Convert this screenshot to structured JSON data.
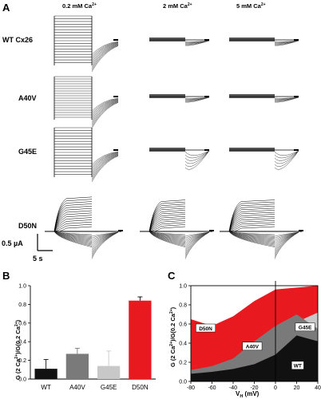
{
  "panel_a": {
    "letter": "A",
    "col_headers": [
      "0.2 mM Ca",
      "2 mM Ca",
      "5 mM Ca"
    ],
    "ca_superscript": "2+",
    "row_labels": [
      "WT Cx26",
      "A40V",
      "G45E",
      "D50N"
    ],
    "scale_current": "0.5 µA",
    "scale_time": "5 s"
  },
  "panel_b": {
    "letter": "B",
    "ylabel": "G (2 Ca",
    "ylabel_sup1": "2+",
    "ylabel_mid": ")/G(0.2 Ca",
    "ylabel_sup2": "2+",
    "ylabel_end": ")",
    "yticks": [
      "0.0",
      "0.2",
      "0.4",
      "0.6",
      "0.8",
      "1.0"
    ]
  },
  "panel_c": {
    "letter": "C",
    "ylabel": "G (2 Ca",
    "ylabel_sup1": "2+",
    "ylabel_mid": ")/G(0.2 Ca",
    "ylabel_sup2": "2+",
    "ylabel_end": ")",
    "xlabel": "V",
    "xlabel_sub": "H",
    "xlabel_unit": " (mV)",
    "xticks": [
      "-80",
      "-60",
      "-40",
      "-20",
      "0",
      "20",
      "40"
    ],
    "yticks": [
      "0.0",
      "0.2",
      "0.4",
      "0.6",
      "0.8",
      "1.0"
    ],
    "labels": [
      "D50N",
      "G45E",
      "A40V",
      "WT"
    ]
  },
  "colors": {
    "wt": "#111111",
    "a40v": "#7a7a7a",
    "g45e": "#c8c8c8",
    "d50n": "#e8191f"
  },
  "chart_data": [
    {
      "type": "bar",
      "categories": [
        "WT",
        "A40V",
        "G45E",
        "D50N"
      ],
      "values": [
        0.11,
        0.27,
        0.14,
        0.84
      ],
      "errors": [
        0.1,
        0.06,
        0.16,
        0.04
      ],
      "ylabel": "G (2 Ca2+)/G(0.2 Ca2+)",
      "ylim": [
        0,
        1.0
      ],
      "colors": [
        "#111111",
        "#7a7a7a",
        "#c8c8c8",
        "#e8191f"
      ]
    },
    {
      "type": "area",
      "xlabel": "VH (mV)",
      "ylabel": "G (2 Ca2+)/G(0.2 Ca2+)",
      "xlim": [
        -80,
        40
      ],
      "ylim": [
        0,
        1.0
      ],
      "x": [
        -80,
        -60,
        -40,
        -20,
        0,
        20,
        40
      ],
      "series": [
        {
          "name": "D50N",
          "values": [
            0.65,
            0.58,
            0.68,
            0.84,
            0.96,
            0.98,
            1.0
          ]
        },
        {
          "name": "G45E",
          "values": [
            0.1,
            0.14,
            0.22,
            0.3,
            0.4,
            0.62,
            0.72
          ]
        },
        {
          "name": "A40V",
          "values": [
            0.12,
            0.16,
            0.24,
            0.42,
            0.58,
            0.7,
            0.55
          ]
        },
        {
          "name": "WT",
          "values": [
            0.08,
            0.1,
            0.13,
            0.18,
            0.28,
            0.48,
            0.42
          ]
        }
      ]
    }
  ]
}
